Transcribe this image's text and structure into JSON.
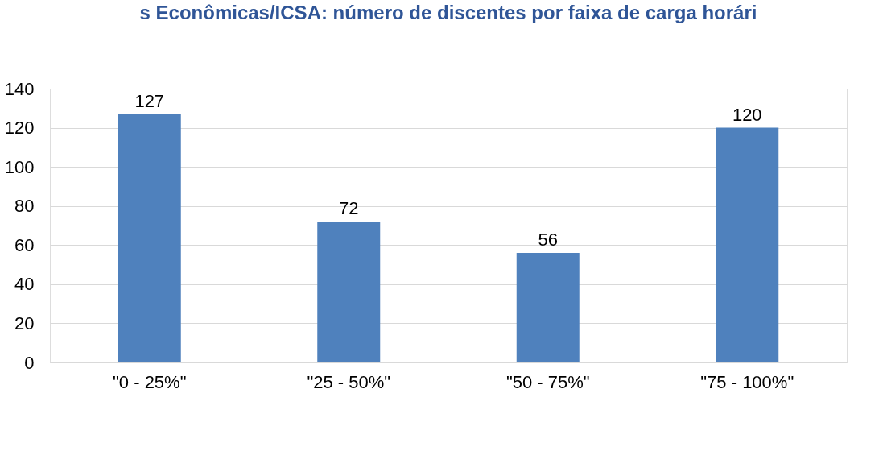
{
  "chart_data": {
    "type": "bar",
    "title": "s Econômicas/ICSA: número de discentes por faixa de carga horári",
    "categories": [
      "\"0 - 25%\"",
      "\"25 - 50%\"",
      "\"50 - 75%\"",
      "\"75 - 100%\""
    ],
    "values": [
      127,
      72,
      56,
      120
    ],
    "color": "#4f81bd",
    "ylim": [
      0,
      140
    ],
    "yticks": [
      0,
      20,
      40,
      60,
      80,
      100,
      120,
      140
    ],
    "grid": "y",
    "data_labels": true
  }
}
